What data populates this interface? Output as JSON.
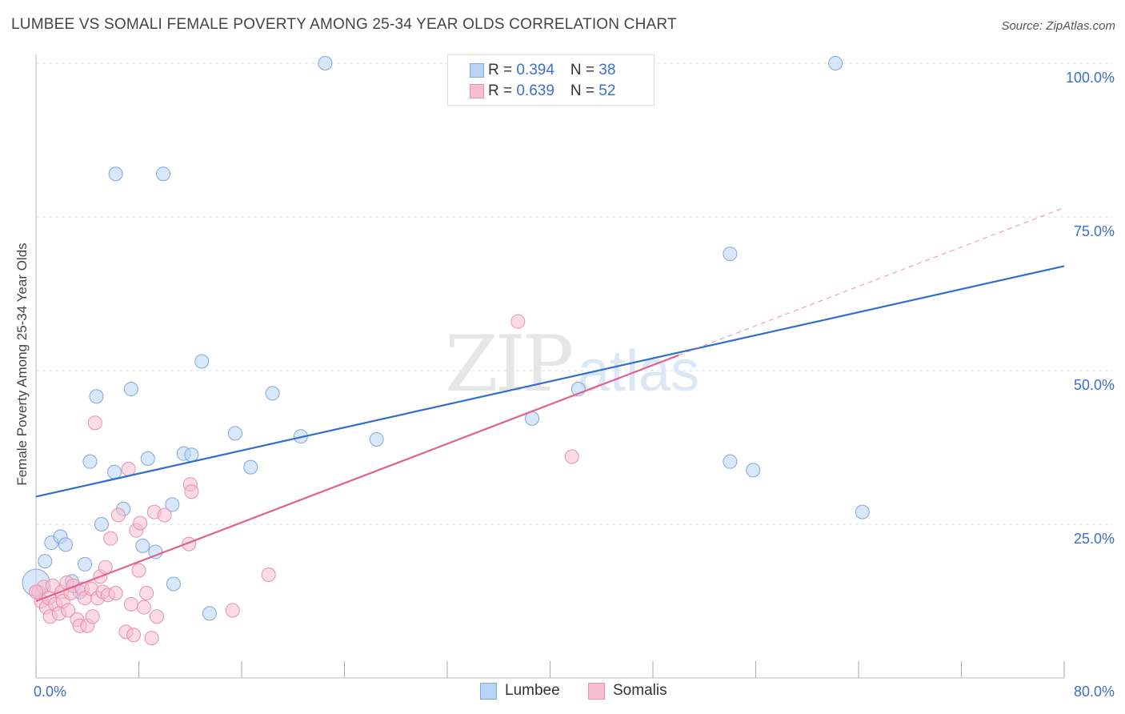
{
  "title": "LUMBEE VS SOMALI FEMALE POVERTY AMONG 25-34 YEAR OLDS CORRELATION CHART",
  "source": "Source: ZipAtlas.com",
  "watermark": {
    "zip": "ZIP",
    "atlas": "atlas"
  },
  "legend_top": [
    {
      "r_label": "R = ",
      "r_value": "0.394",
      "n_label": "N = ",
      "n_value": "38"
    },
    {
      "r_label": "R = ",
      "r_value": "0.639",
      "n_label": "N = ",
      "n_value": "52"
    }
  ],
  "legend_bottom": [
    "Lumbee",
    "Somalis"
  ],
  "colors": {
    "lumbee_fill": "#b8d3f5",
    "lumbee_stroke": "#7fa8dc",
    "lumbee_line": "#3070cc",
    "somali_fill": "#f7bed0",
    "somali_stroke": "#e890ad",
    "somali_line": "#e0608e",
    "tick_text": "#3a6fd1",
    "grid": "#dddddd"
  },
  "chart_data": {
    "type": "scatter",
    "title": "LUMBEE VS SOMALI FEMALE POVERTY AMONG 25-34 YEAR OLDS CORRELATION CHART",
    "xlabel": "",
    "ylabel": "Female Poverty Among 25-34 Year Olds",
    "xlim": [
      0,
      80
    ],
    "ylim": [
      0,
      100
    ],
    "x_tick_labels": [
      "0.0%",
      "80.0%"
    ],
    "y_tick_labels": [
      {
        "value": 100,
        "label": "100.0%"
      },
      {
        "value": 75,
        "label": "75.0%"
      },
      {
        "value": 50,
        "label": "50.0%"
      },
      {
        "value": 25,
        "label": "25.0%"
      }
    ],
    "grid": true,
    "legend_position": "top-center",
    "series": [
      {
        "name": "Lumbee",
        "points": [
          [
            0.0,
            15.5
          ],
          [
            0.7,
            19.0
          ],
          [
            1.2,
            22.0
          ],
          [
            1.9,
            23.0
          ],
          [
            2.3,
            21.7
          ],
          [
            2.8,
            15.7
          ],
          [
            3.4,
            14.0
          ],
          [
            3.8,
            18.5
          ],
          [
            4.2,
            35.2
          ],
          [
            4.7,
            45.8
          ],
          [
            5.1,
            25.0
          ],
          [
            6.2,
            82.0
          ],
          [
            6.1,
            33.5
          ],
          [
            6.8,
            27.5
          ],
          [
            7.4,
            47.0
          ],
          [
            8.3,
            21.5
          ],
          [
            8.7,
            35.7
          ],
          [
            9.3,
            20.5
          ],
          [
            9.9,
            82.0
          ],
          [
            10.6,
            28.2
          ],
          [
            10.7,
            15.3
          ],
          [
            11.5,
            36.5
          ],
          [
            12.1,
            36.3
          ],
          [
            12.9,
            51.5
          ],
          [
            13.5,
            10.5
          ],
          [
            15.5,
            39.8
          ],
          [
            16.7,
            34.3
          ],
          [
            18.4,
            46.3
          ],
          [
            20.6,
            39.3
          ],
          [
            22.5,
            100.0
          ],
          [
            26.5,
            38.8
          ],
          [
            38.6,
            42.2
          ],
          [
            42.2,
            47.0
          ],
          [
            54.0,
            69.0
          ],
          [
            54.0,
            35.2
          ],
          [
            55.8,
            33.8
          ],
          [
            62.2,
            100.0
          ],
          [
            64.3,
            27.0
          ]
        ],
        "trend": {
          "x": [
            0,
            80
          ],
          "y": [
            29.5,
            67.0
          ]
        }
      },
      {
        "name": "Somalis",
        "points": [
          [
            0.2,
            14.0
          ],
          [
            0.4,
            12.5
          ],
          [
            0.6,
            14.8
          ],
          [
            0.8,
            11.5
          ],
          [
            1.0,
            13.0
          ],
          [
            1.1,
            10.0
          ],
          [
            1.3,
            15.0
          ],
          [
            1.5,
            12.0
          ],
          [
            1.8,
            10.5
          ],
          [
            2.0,
            14.0
          ],
          [
            2.1,
            12.5
          ],
          [
            2.4,
            15.5
          ],
          [
            2.5,
            11.0
          ],
          [
            2.7,
            13.8
          ],
          [
            2.9,
            15.0
          ],
          [
            3.2,
            9.5
          ],
          [
            3.4,
            8.5
          ],
          [
            3.6,
            14.5
          ],
          [
            3.8,
            13.0
          ],
          [
            4.0,
            8.5
          ],
          [
            4.3,
            14.5
          ],
          [
            4.4,
            10.0
          ],
          [
            4.6,
            41.5
          ],
          [
            4.8,
            13.0
          ],
          [
            5.0,
            16.5
          ],
          [
            5.2,
            14.0
          ],
          [
            5.4,
            18.0
          ],
          [
            5.6,
            13.5
          ],
          [
            5.8,
            22.7
          ],
          [
            6.2,
            13.8
          ],
          [
            6.4,
            26.5
          ],
          [
            7.0,
            7.5
          ],
          [
            7.2,
            34.0
          ],
          [
            7.4,
            12.0
          ],
          [
            7.6,
            7.0
          ],
          [
            7.8,
            24.0
          ],
          [
            8.0,
            17.5
          ],
          [
            8.1,
            25.2
          ],
          [
            8.4,
            11.5
          ],
          [
            8.6,
            13.8
          ],
          [
            9.0,
            6.5
          ],
          [
            9.2,
            27.0
          ],
          [
            9.4,
            10.0
          ],
          [
            10.0,
            26.5
          ],
          [
            11.9,
            21.8
          ],
          [
            12.0,
            31.5
          ],
          [
            12.1,
            30.3
          ],
          [
            15.3,
            11.0
          ],
          [
            18.1,
            16.8
          ],
          [
            37.5,
            58.0
          ],
          [
            41.7,
            36.0
          ],
          [
            0.0,
            14.0
          ]
        ],
        "trend": {
          "x": [
            0,
            50
          ],
          "y": [
            12.5,
            52.5
          ]
        },
        "trend_extension": {
          "x": [
            50,
            80
          ],
          "y": [
            52.5,
            76.5
          ]
        }
      }
    ]
  }
}
